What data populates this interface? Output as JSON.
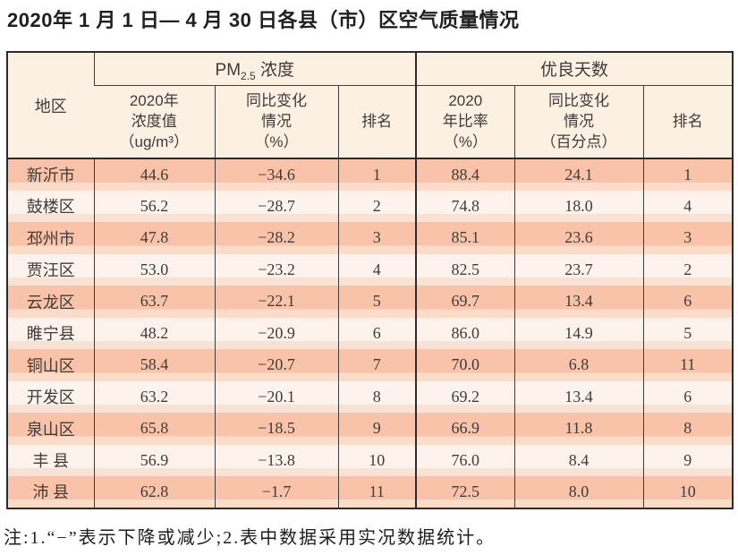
{
  "title": "2020年 1 月 1 日— 4 月 30 日各县（市）区空气质量情况",
  "table": {
    "header": {
      "region": "地区",
      "pm25_group": {
        "prefix": "PM",
        "sub": "2.5",
        "suffix": " 浓度"
      },
      "good_days_group": "优良天数",
      "pm_value_col": {
        "lines": [
          "2020年",
          "浓度值",
          "（ug/m³）"
        ]
      },
      "pm_change_col": {
        "lines": [
          "同比变化",
          "情况",
          "（%）"
        ]
      },
      "pm_rank_col": "排名",
      "good_ratio_col": {
        "lines": [
          "2020",
          "年比率",
          "（%）"
        ]
      },
      "good_change_col": {
        "lines": [
          "同比变化",
          "情况",
          "（百分点）"
        ]
      },
      "good_rank_col": "排名"
    },
    "rows": [
      {
        "region": "新沂市",
        "pm_value": "44.6",
        "pm_change": "−34.6",
        "pm_rank": "1",
        "good_ratio": "88.4",
        "good_change": "24.1",
        "good_rank": "1"
      },
      {
        "region": "鼓楼区",
        "pm_value": "56.2",
        "pm_change": "−28.7",
        "pm_rank": "2",
        "good_ratio": "74.8",
        "good_change": "18.0",
        "good_rank": "4"
      },
      {
        "region": "邳州市",
        "pm_value": "47.8",
        "pm_change": "−28.2",
        "pm_rank": "3",
        "good_ratio": "85.1",
        "good_change": "23.6",
        "good_rank": "3"
      },
      {
        "region": "贾汪区",
        "pm_value": "53.0",
        "pm_change": "−23.2",
        "pm_rank": "4",
        "good_ratio": "82.5",
        "good_change": "23.7",
        "good_rank": "2"
      },
      {
        "region": "云龙区",
        "pm_value": "63.7",
        "pm_change": "−22.1",
        "pm_rank": "5",
        "good_ratio": "69.7",
        "good_change": "13.4",
        "good_rank": "6"
      },
      {
        "region": "睢宁县",
        "pm_value": "48.2",
        "pm_change": "−20.9",
        "pm_rank": "6",
        "good_ratio": "86.0",
        "good_change": "14.9",
        "good_rank": "5"
      },
      {
        "region": "铜山区",
        "pm_value": "58.4",
        "pm_change": "−20.7",
        "pm_rank": "7",
        "good_ratio": "70.0",
        "good_change": "6.8",
        "good_rank": "11"
      },
      {
        "region": "开发区",
        "pm_value": "63.2",
        "pm_change": "−20.1",
        "pm_rank": "8",
        "good_ratio": "69.2",
        "good_change": "13.4",
        "good_rank": "6"
      },
      {
        "region": "泉山区",
        "pm_value": "65.8",
        "pm_change": "−18.5",
        "pm_rank": "9",
        "good_ratio": "66.9",
        "good_change": "11.8",
        "good_rank": "8"
      },
      {
        "region": "丰 县",
        "pm_value": "56.9",
        "pm_change": "−13.8",
        "pm_rank": "10",
        "good_ratio": "76.0",
        "good_change": "8.4",
        "good_rank": "9"
      },
      {
        "region": "沛 县",
        "pm_value": "62.8",
        "pm_change": "−1.7",
        "pm_rank": "11",
        "good_ratio": "72.5",
        "good_change": "8.0",
        "good_rank": "10"
      }
    ]
  },
  "note": "注:1.“−”表示下降或减少;2.表中数据采用实况数据统计。",
  "colors": {
    "row-odd": "#f8c3a9",
    "row-odd-edge": "#fadcc9",
    "row-even": "#fdf2ec",
    "row-even-edge": "#f9e2d4",
    "header-bg": "#fcf0e3",
    "border": "#3d3d3d",
    "border-strong": "#2b2b2b",
    "text": "#3f3b38",
    "title-text": "#1f1f1f"
  }
}
